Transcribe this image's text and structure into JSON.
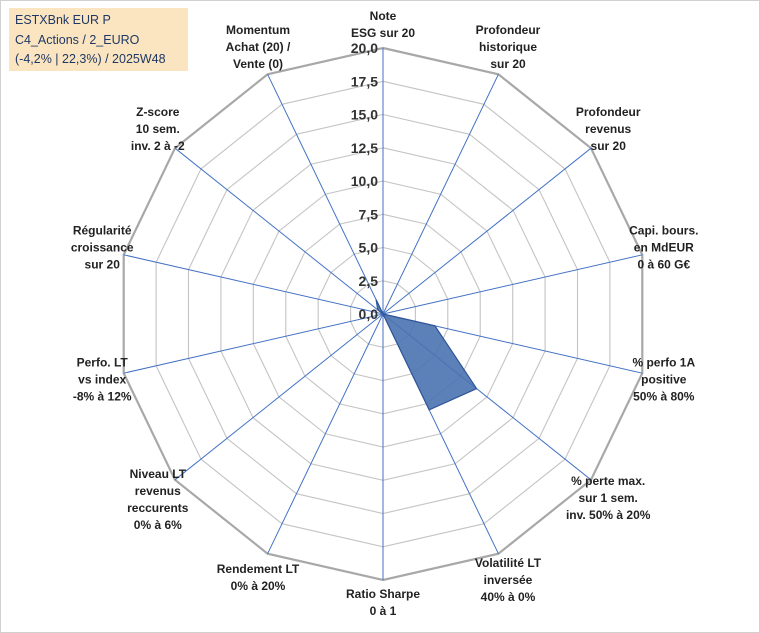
{
  "title_box": {
    "line1": "ESTXBnk EUR P",
    "line2": "C4_Actions / 2_EURO",
    "line3": "(-4,2% | 22,3%) / 2025W48"
  },
  "chart_data": {
    "type": "radar",
    "rmin": 0,
    "rmax": 20,
    "ticks": [
      "0,0",
      "2,5",
      "5,0",
      "7,5",
      "10,0",
      "12,5",
      "15,0",
      "17,5",
      "20,0"
    ],
    "tick_values": [
      0,
      2.5,
      5,
      7.5,
      10,
      12.5,
      15,
      17.5,
      20
    ],
    "axes": [
      {
        "lines": [
          "Note",
          "ESG sur 20"
        ]
      },
      {
        "lines": [
          "Profondeur",
          "historique",
          "sur 20"
        ]
      },
      {
        "lines": [
          "Profondeur",
          "revenus",
          "sur 20"
        ]
      },
      {
        "lines": [
          "Capi. bours.",
          "en MdEUR",
          "0 à 60 G€"
        ]
      },
      {
        "lines": [
          "% perfo 1A",
          "positive",
          "50% à 80%"
        ]
      },
      {
        "lines": [
          "% perte max.",
          "sur 1 sem.",
          "inv. 50% à 20%"
        ]
      },
      {
        "lines": [
          "Volatilité LT",
          "inversée",
          "40% à 0%"
        ]
      },
      {
        "lines": [
          "Ratio Sharpe",
          "0 à 1"
        ]
      },
      {
        "lines": [
          "Rendement LT",
          "0% à 20%"
        ]
      },
      {
        "lines": [
          "Niveau LT",
          "revenus",
          "reccurents",
          "0% à 6%"
        ]
      },
      {
        "lines": [
          "Perfo. LT",
          "vs index",
          "-8% à 12%"
        ]
      },
      {
        "lines": [
          "Régularité",
          "croissance",
          "sur 20"
        ]
      },
      {
        "lines": [
          "Z-score",
          "10 sem.",
          "inv. 2 à -2"
        ]
      },
      {
        "lines": [
          "Momentum",
          "Achat (20) /",
          "Vente (0)"
        ]
      }
    ],
    "series": [
      {
        "name": "ESTXBnk EUR P",
        "values": [
          0,
          0,
          0,
          0,
          4,
          9,
          8,
          0,
          0,
          0,
          0,
          0,
          0.5,
          1.2
        ]
      }
    ],
    "colors": {
      "fill": "#4a72b0",
      "stroke": "#2f5597",
      "grid": "#c4c4c4",
      "spoke": "#4472c4"
    }
  }
}
